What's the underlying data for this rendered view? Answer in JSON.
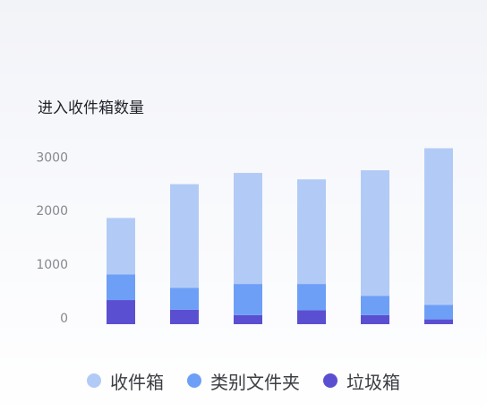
{
  "chart_data": {
    "type": "bar",
    "stacked": true,
    "title": "进入收件箱数量",
    "xlabel": "",
    "ylabel": "",
    "categories": [
      "",
      "",
      "",
      "",
      "",
      ""
    ],
    "y_ticks": [
      0,
      1000,
      2000,
      3000
    ],
    "ylim": [
      0,
      3300
    ],
    "grid": false,
    "legend_position": "bottom-center",
    "series": [
      {
        "name": "垃圾箱",
        "color": "#5b4fd1",
        "values": [
          450,
          270,
          170,
          260,
          170,
          90
        ]
      },
      {
        "name": "类别文件夹",
        "color": "#6e9ff7",
        "values": [
          480,
          410,
          580,
          490,
          360,
          270
        ]
      },
      {
        "name": "收件箱",
        "color": "#b2cbf6",
        "values": [
          1050,
          1930,
          2070,
          1950,
          2340,
          2920
        ]
      }
    ]
  },
  "legend": [
    {
      "label": "收件箱",
      "color": "#b2cbf6"
    },
    {
      "label": "类别文件夹",
      "color": "#6e9ff7"
    },
    {
      "label": "垃圾箱",
      "color": "#5b4fd1"
    }
  ]
}
